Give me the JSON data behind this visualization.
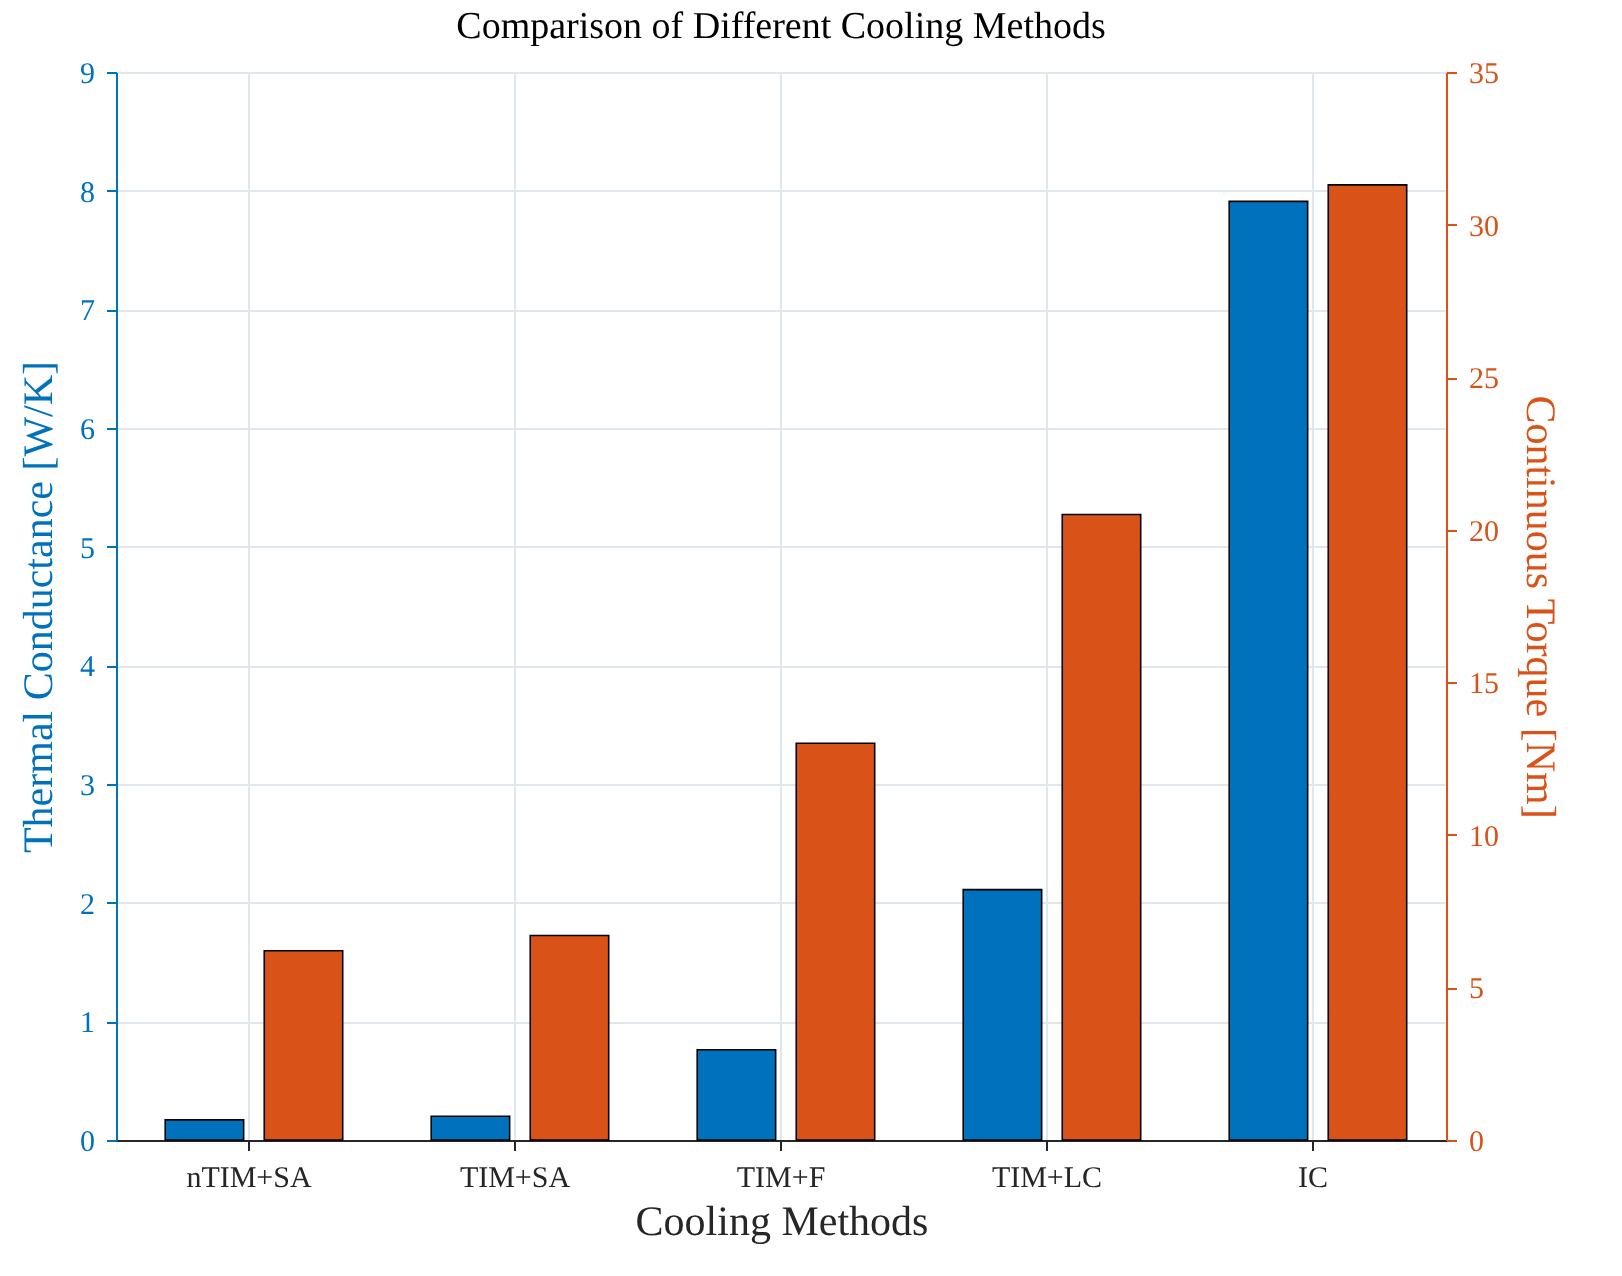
{
  "chart_data": {
    "type": "bar",
    "title": "Comparison of Different Cooling Methods",
    "xlabel": "Cooling Methods",
    "ylabel": "Thermal Conductance [W/K]",
    "y2label": "Continuous Torque [Nm]",
    "categories": [
      "nTIM+SA",
      "TIM+SA",
      "TIM+F",
      "TIM+LC",
      "IC"
    ],
    "series": [
      {
        "color": "#0072bd",
        "values": [
          0.17,
          0.2,
          0.76,
          2.11,
          7.91
        ]
      },
      {
        "color": "#d95319",
        "axis": "y2",
        "values": [
          6.2,
          6.7,
          13.0,
          20.5,
          31.3
        ]
      }
    ],
    "ylim": [
      0,
      9
    ],
    "yticks": [
      0,
      1,
      2,
      3,
      4,
      5,
      6,
      7,
      8,
      9
    ],
    "y2lim": [
      0,
      35
    ],
    "y2ticks": [
      0,
      5,
      10,
      15,
      20,
      25,
      30,
      35
    ],
    "grid": true
  }
}
